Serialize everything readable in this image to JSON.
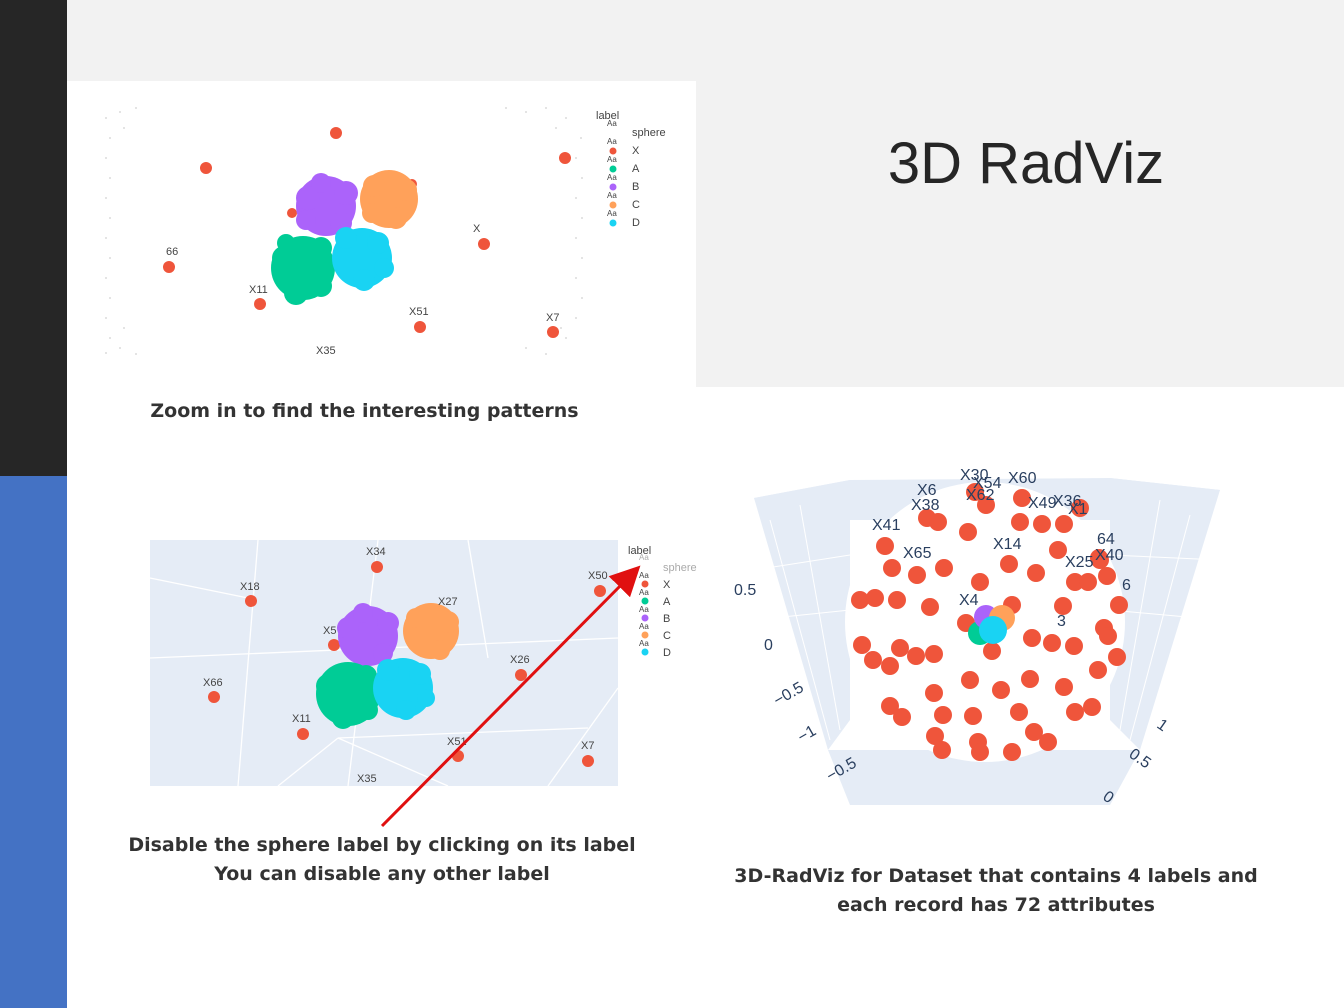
{
  "slide": {
    "title": "3D RadViz",
    "captions": {
      "zoom": "Zoom in to find the interesting patterns",
      "disable_line1": "Disable the sphere label  by clicking on its label",
      "disable_line2": "You can disable any other label",
      "radviz_line1": "3D-RadViz for Dataset that contains 4 labels and",
      "radviz_line2": "each record has 72 attributes"
    }
  },
  "colors": {
    "attribute_point": "#ef553b",
    "A": "#00cc96",
    "B": "#ab63fa",
    "C": "#ffa15a",
    "D": "#19d3f3",
    "arrow": "#e01010",
    "plot_bg": "#e5ecf6"
  },
  "plot1": {
    "legend": {
      "title": "label",
      "items": [
        {
          "name": "sphere",
          "color": "",
          "aa": "Aa"
        },
        {
          "name": "X",
          "color": "#ef553b",
          "aa": "Aa"
        },
        {
          "name": "A",
          "color": "#00cc96",
          "aa": "Aa"
        },
        {
          "name": "B",
          "color": "#ab63fa",
          "aa": "Aa"
        },
        {
          "name": "C",
          "color": "#ffa15a",
          "aa": "Aa"
        },
        {
          "name": "D",
          "color": "#19d3f3",
          "aa": "Aa"
        }
      ]
    },
    "point_labels": [
      "X11",
      "X51",
      "X7",
      "X35",
      "66",
      "X"
    ]
  },
  "plot2": {
    "legend": {
      "title": "label",
      "items": [
        {
          "name": "sphere",
          "color": "",
          "aa": "Aa",
          "disabled": true
        },
        {
          "name": "X",
          "color": "#ef553b",
          "aa": "Aa"
        },
        {
          "name": "A",
          "color": "#00cc96",
          "aa": "Aa"
        },
        {
          "name": "B",
          "color": "#ab63fa",
          "aa": "Aa"
        },
        {
          "name": "C",
          "color": "#ffa15a",
          "aa": "Aa"
        },
        {
          "name": "D",
          "color": "#19d3f3",
          "aa": "Aa"
        }
      ]
    },
    "point_labels": [
      "X34",
      "X18",
      "X50",
      "X27",
      "X5",
      "X26",
      "X66",
      "X11",
      "X51",
      "X7",
      "X35"
    ]
  },
  "plot3": {
    "point_labels": [
      "X30",
      "X54",
      "X60",
      "X6",
      "X62",
      "X38",
      "X49",
      "X36",
      "X1",
      "X41",
      "X14",
      "X65",
      "X25",
      "X40",
      "X4",
      "6",
      "3",
      "64"
    ],
    "axis_ticks": [
      "0.5",
      "0",
      "−0.5",
      "−1",
      "−0.5",
      "1",
      "0.5",
      "0"
    ]
  }
}
